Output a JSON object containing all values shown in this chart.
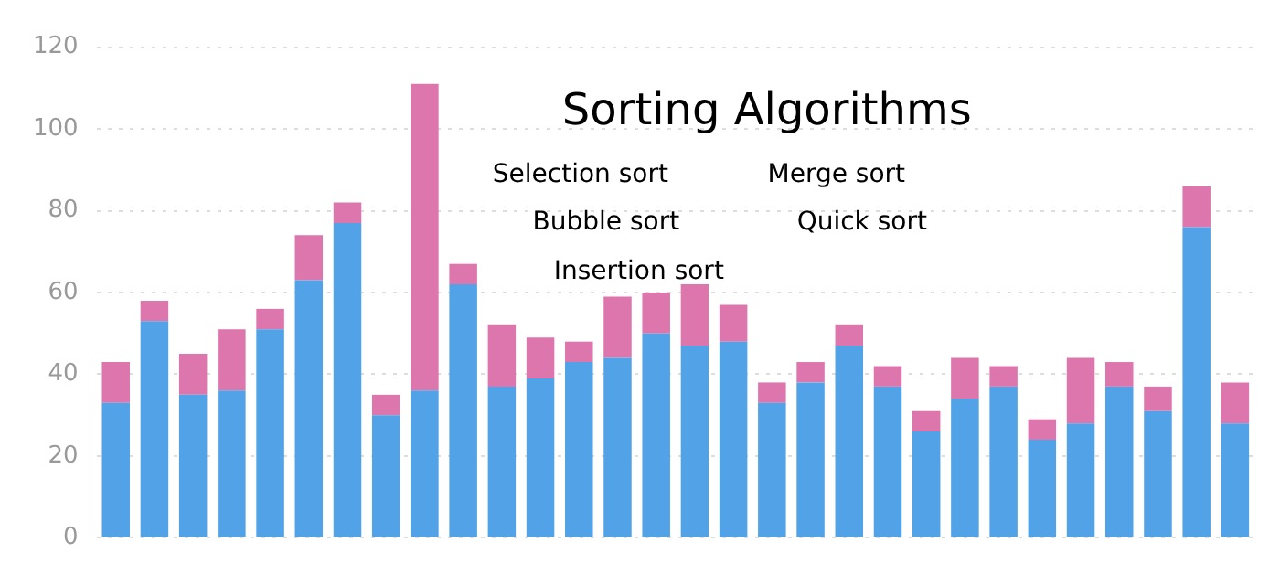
{
  "chart_data": {
    "type": "bar",
    "title": "Sorting Algorithms",
    "stacked": true,
    "categories": [
      null,
      null,
      null,
      null,
      null,
      null,
      null,
      null,
      null,
      null,
      null,
      null,
      null,
      null,
      null,
      null,
      null,
      null,
      null,
      null,
      null,
      null,
      null,
      null,
      null,
      null,
      null,
      null,
      null,
      null
    ],
    "series": [
      {
        "color": "#51a2e6",
        "values": [
          33,
          53,
          35,
          36,
          51,
          63,
          77,
          30,
          36,
          62,
          37,
          39,
          43,
          44,
          50,
          47,
          48,
          33,
          38,
          47,
          37,
          26,
          34,
          37,
          24,
          28,
          37,
          31,
          76,
          28
        ]
      },
      {
        "color": "#dd76ad",
        "values": [
          10,
          5,
          10,
          15,
          5,
          11,
          5,
          5,
          75,
          5,
          15,
          10,
          5,
          15,
          10,
          15,
          9,
          5,
          5,
          5,
          5,
          5,
          10,
          5,
          5,
          16,
          6,
          6,
          10,
          10
        ]
      }
    ],
    "ylim": [
      0,
      120
    ],
    "yticks": [
      0,
      20,
      40,
      60,
      80,
      100,
      120
    ],
    "grid": "y",
    "tick_labels": "y",
    "annotations": [
      "Selection sort",
      "Merge sort",
      "Bubble sort",
      "Quick sort",
      "Insertion sort"
    ]
  }
}
